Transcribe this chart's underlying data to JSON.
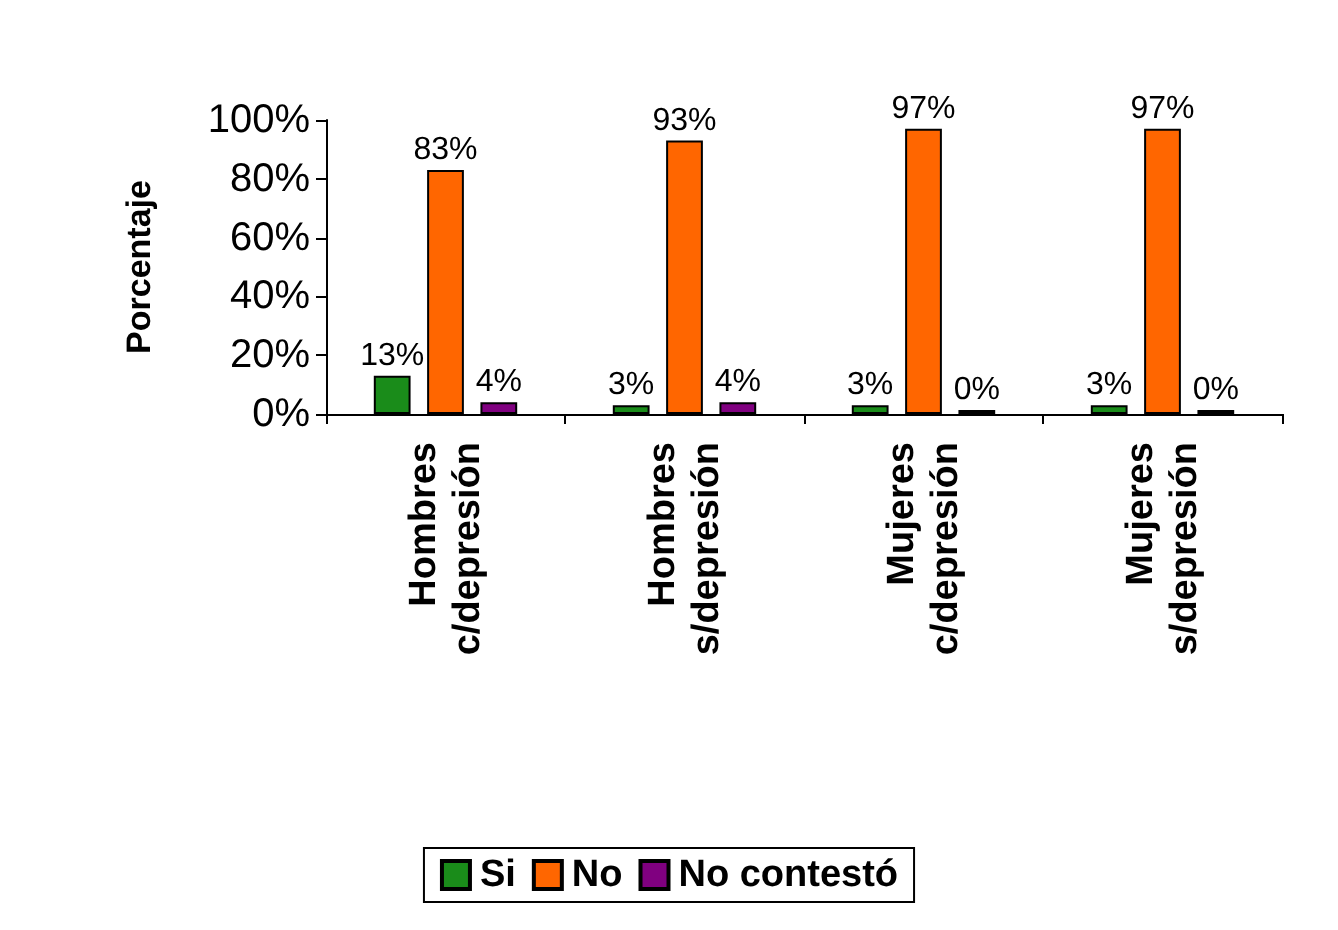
{
  "chart_data": {
    "type": "bar",
    "ylabel": "Porcentaje",
    "categories": [
      "Hombres\nc/depresión",
      "Hombres\ns/depresión",
      "Mujeres\nc/depresión",
      "Mujeres\ns/depresión"
    ],
    "series": [
      {
        "name": "Si",
        "color": "#1a8c1a",
        "values": [
          13,
          3,
          3,
          3
        ],
        "value_labels": [
          "13%",
          "3%",
          "3%",
          "3%"
        ]
      },
      {
        "name": "No",
        "color": "#ff6600",
        "values": [
          83,
          93,
          97,
          97
        ],
        "value_labels": [
          "83%",
          "93%",
          "97%",
          "97%"
        ]
      },
      {
        "name": "No contestó",
        "color": "#800080",
        "values": [
          4,
          4,
          0,
          0
        ],
        "value_labels": [
          "4%",
          "4%",
          "0%",
          "0%"
        ]
      }
    ],
    "ylim": [
      0,
      100
    ],
    "yticks": [
      {
        "value": 0,
        "label": "0%"
      },
      {
        "value": 20,
        "label": "20%"
      },
      {
        "value": 40,
        "label": "40%"
      },
      {
        "value": 60,
        "label": "60%"
      },
      {
        "value": 80,
        "label": "80%"
      },
      {
        "value": 100,
        "label": "100%"
      }
    ],
    "grid": false,
    "legend": "bottom"
  }
}
